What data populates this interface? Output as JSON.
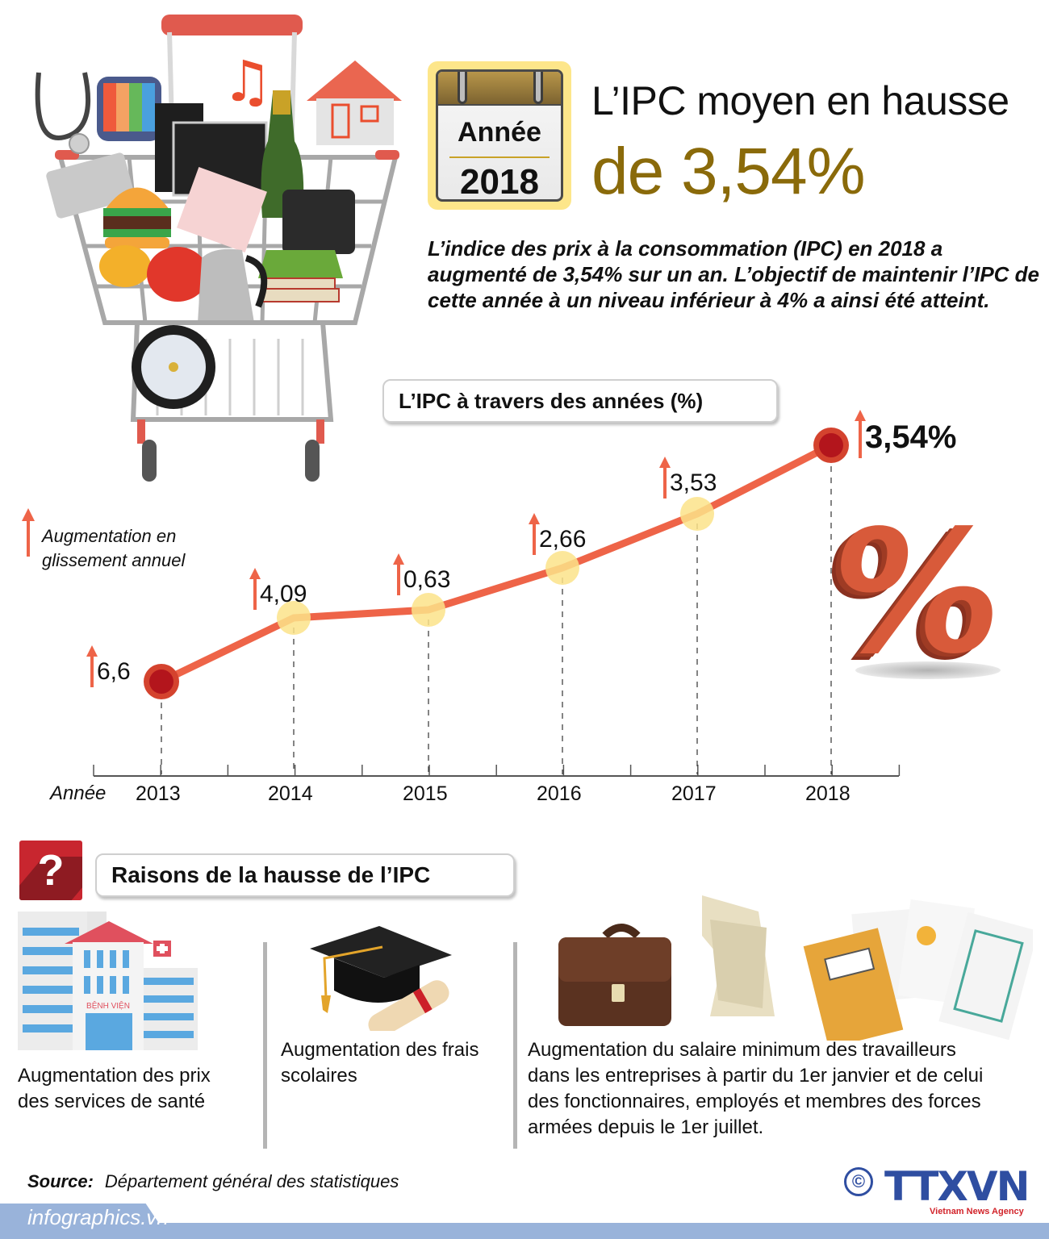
{
  "header": {
    "calendar_label": "Année",
    "calendar_year": "2018",
    "headline_line1": "L’IPC moyen en hausse",
    "headline_line2": "de 3,54%",
    "intro": "L’indice des prix à la consommation (IPC) en 2018 a augmenté de 3,54% sur un an. L’objectif de maintenir l’IPC de cette année à un niveau inférieur à 4% a ainsi été atteint."
  },
  "illustration": {
    "description": "shopping-cart filled with goods",
    "items": [
      "stethoscope",
      "tv",
      "music-note",
      "house",
      "computer",
      "champagne",
      "pills",
      "burger",
      "pepper",
      "tomato",
      "shirt",
      "telephone",
      "kettle",
      "books",
      "wheel"
    ]
  },
  "chart_section": {
    "title": "L’IPC à travers des années (%)",
    "legend": "Augmentation en glissement annuel",
    "axis_label": "Année",
    "final_label": "3,54%"
  },
  "chart_data": {
    "type": "line",
    "title": "L’IPC à travers des années (%)",
    "xlabel": "Année",
    "ylabel": "",
    "categories": [
      "2013",
      "2014",
      "2015",
      "2016",
      "2017",
      "2018"
    ],
    "series": [
      {
        "name": "Augmentation en glissement annuel",
        "values": [
          6.6,
          4.09,
          0.63,
          2.66,
          3.53,
          3.54
        ]
      }
    ],
    "value_labels": [
      "6,6",
      "4,09",
      "0,63",
      "2,66",
      "3,53",
      "3,54%"
    ],
    "grid": false,
    "legend_position": "top-left",
    "colors": {
      "line": "#ee6448",
      "endpoint": "#b3151c",
      "midpoint": "#fbe389",
      "arrow": "#ee6448"
    }
  },
  "reasons_section": {
    "title": "Raisons de la hausse de l’IPC",
    "icon": "question-mark",
    "reasons": [
      {
        "icon": "hospital-icon",
        "hospital_sign": "BỆNH VIỆN",
        "text_lines": [
          "Augmentation des prix",
          "des services de santé"
        ]
      },
      {
        "icon": "graduation-cap-icon",
        "text_lines": [
          "Augmentation des frais",
          "scolaires"
        ]
      },
      {
        "icon": "briefcase-documents-icon",
        "text_lines": [
          "Augmentation du salaire minimum des travailleurs",
          "dans les entreprises à partir du 1er janvier et de celui",
          "des fonctionnaires, employés et membres des forces",
          "armées  depuis le 1er juillet."
        ]
      }
    ]
  },
  "footer": {
    "source_label": "Source:",
    "source_value": "Département général des statistiques",
    "site": "infographics.vn",
    "copyright": "©",
    "agency_logo": "TTXVN",
    "agency_sub": "Vietnam News Agency"
  },
  "colors": {
    "headline_gold": "#8a6a0a",
    "accent_red": "#c8262f",
    "footer_blue": "#99b3da",
    "agency_blue": "#2f4ea1"
  }
}
